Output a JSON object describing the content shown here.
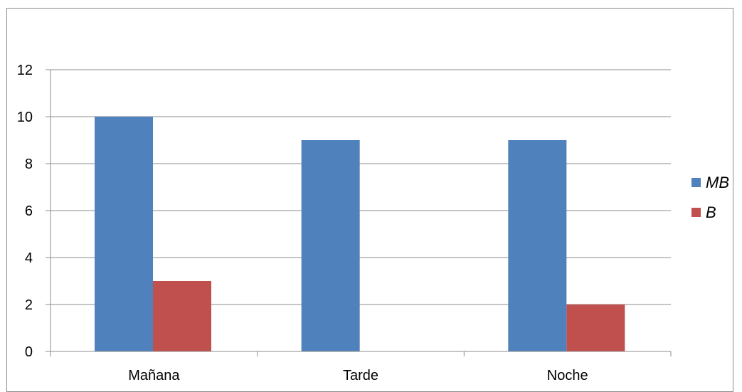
{
  "chart_data": {
    "type": "bar",
    "categories": [
      "Mañana",
      "Tarde",
      "Noche"
    ],
    "series": [
      {
        "name": "MB",
        "values": [
          10,
          9,
          9
        ],
        "color": "#4f81bd"
      },
      {
        "name": "B",
        "values": [
          3,
          0,
          2
        ],
        "color": "#c0504d"
      }
    ],
    "yticks": [
      "0",
      "2",
      "4",
      "6",
      "8",
      "10",
      "12"
    ],
    "ylim": [
      0,
      12
    ],
    "grid": true,
    "legend_position": "right"
  }
}
